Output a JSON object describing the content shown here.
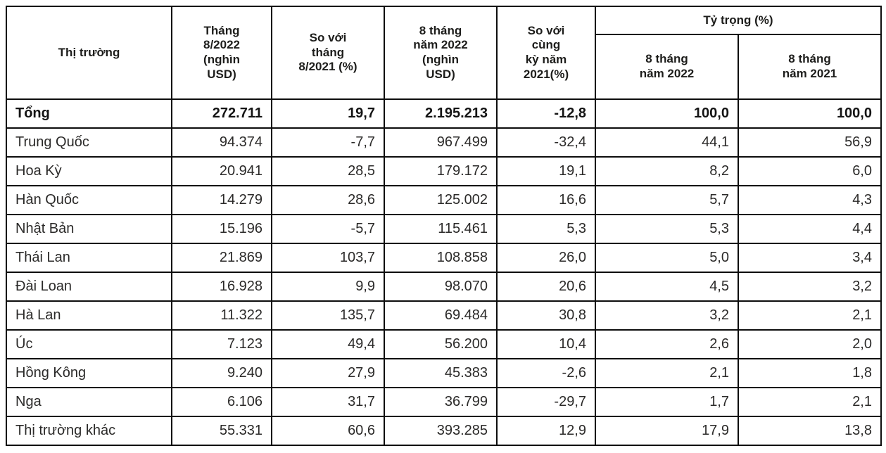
{
  "chart_data": {
    "type": "table",
    "header": {
      "market": "Thị trường",
      "month_2022": "Tháng\n8/2022\n(nghìn\nUSD)",
      "vs_month_2021": "So với\ntháng\n8/2021 (%)",
      "eight_months_2022": "8 tháng\nnăm 2022\n(nghìn\nUSD)",
      "vs_same_period_2021": "So với\ncùng\nkỳ năm\n2021(%)",
      "share_group": "Tỷ trọng (%)",
      "share_2022": "8 tháng\nnăm 2022",
      "share_2021": "8 tháng\nnăm 2021"
    },
    "rows": [
      {
        "market": "Tổng",
        "bold": true,
        "values": [
          "272.711",
          "19,7",
          "2.195.213",
          "-12,8",
          "100,0",
          "100,0"
        ]
      },
      {
        "market": "Trung Quốc",
        "bold": false,
        "values": [
          "94.374",
          "-7,7",
          "967.499",
          "-32,4",
          "44,1",
          "56,9"
        ]
      },
      {
        "market": "Hoa Kỳ",
        "bold": false,
        "values": [
          "20.941",
          "28,5",
          "179.172",
          "19,1",
          "8,2",
          "6,0"
        ]
      },
      {
        "market": "Hàn Quốc",
        "bold": false,
        "values": [
          "14.279",
          "28,6",
          "125.002",
          "16,6",
          "5,7",
          "4,3"
        ]
      },
      {
        "market": "Nhật Bản",
        "bold": false,
        "values": [
          "15.196",
          "-5,7",
          "115.461",
          "5,3",
          "5,3",
          "4,4"
        ]
      },
      {
        "market": "Thái Lan",
        "bold": false,
        "values": [
          "21.869",
          "103,7",
          "108.858",
          "26,0",
          "5,0",
          "3,4"
        ]
      },
      {
        "market": "Đài Loan",
        "bold": false,
        "values": [
          "16.928",
          "9,9",
          "98.070",
          "20,6",
          "4,5",
          "3,2"
        ]
      },
      {
        "market": "Hà Lan",
        "bold": false,
        "values": [
          "11.322",
          "135,7",
          "69.484",
          "30,8",
          "3,2",
          "2,1"
        ]
      },
      {
        "market": "Úc",
        "bold": false,
        "values": [
          "7.123",
          "49,4",
          "56.200",
          "10,4",
          "2,6",
          "2,0"
        ]
      },
      {
        "market": "Hồng Kông",
        "bold": false,
        "values": [
          "9.240",
          "27,9",
          "45.383",
          "-2,6",
          "2,1",
          "1,8"
        ]
      },
      {
        "market": "Nga",
        "bold": false,
        "values": [
          "6.106",
          "31,7",
          "36.799",
          "-29,7",
          "1,7",
          "2,1"
        ]
      },
      {
        "market": "Thị trường khác",
        "bold": false,
        "values": [
          "55.331",
          "60,6",
          "393.285",
          "12,9",
          "17,9",
          "13,8"
        ]
      }
    ]
  }
}
